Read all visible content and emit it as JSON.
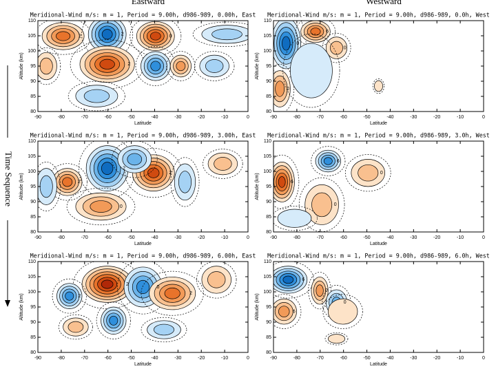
{
  "column_titles": [
    "Eastward",
    "Westward"
  ],
  "side_label": "Time Sequence",
  "chart_data": [
    {
      "type": "contour",
      "title": "Meridional-Wind m/s: m = 1, Period = 9.00h, d986-989, 0.00h, East",
      "x_label": "Latitude",
      "y_label": "Altitude (km)",
      "xlim": [
        -90,
        0
      ],
      "ylim": [
        80,
        110
      ],
      "xticks": [
        -90,
        -80,
        -70,
        -60,
        -50,
        -40,
        -30,
        -20,
        -10,
        0
      ],
      "yticks": [
        80,
        85,
        90,
        95,
        100,
        105,
        110
      ],
      "contour_labels": [
        "2",
        "2",
        "0",
        "2"
      ]
    },
    {
      "type": "contour",
      "title": "Meridional-Wind m/s: m = 1, Period = 9.00h, d986-989, 0.0h, West",
      "x_label": "Latitude",
      "y_label": "Altitude (km)",
      "xlim": [
        -90,
        0
      ],
      "ylim": [
        80,
        110
      ],
      "xticks": [
        -90,
        -80,
        -70,
        -60,
        -50,
        -40,
        -30,
        -20,
        -10,
        0
      ],
      "yticks": [
        80,
        85,
        90,
        95,
        100,
        105,
        110
      ],
      "contour_labels": [
        "0",
        "6",
        "0",
        "0"
      ]
    },
    {
      "type": "contour",
      "title": "Meridional-Wind m/s: m = 1, Period = 9.00h, d986-989, 3.00h, East",
      "x_label": "Latitude",
      "y_label": "Altitude (km)",
      "xlim": [
        -90,
        0
      ],
      "ylim": [
        80,
        110
      ],
      "xticks": [
        -90,
        -80,
        -70,
        -60,
        -50,
        -40,
        -30,
        -20,
        -10,
        0
      ],
      "yticks": [
        80,
        85,
        90,
        95,
        100,
        105,
        110
      ],
      "contour_labels": [
        "2",
        "2",
        "2",
        "0"
      ]
    },
    {
      "type": "contour",
      "title": "Meridional-Wind m/s: m = 1, Period = 9.00h, d986-989, 3.0h, West",
      "x_label": "Latitude",
      "y_label": "Altitude (km)",
      "xlim": [
        -90,
        0
      ],
      "ylim": [
        80,
        110
      ],
      "xticks": [
        -90,
        -80,
        -70,
        -60,
        -50,
        -40,
        -30,
        -20,
        -10,
        0
      ],
      "yticks": [
        80,
        85,
        90,
        95,
        100,
        105,
        110
      ],
      "contour_labels": [
        "6",
        "6",
        "0",
        "0"
      ]
    },
    {
      "type": "contour",
      "title": "Meridional-Wind m/s: m = 1, Period = 9.00h, d986-989, 6.00h, East",
      "x_label": "Latitude",
      "y_label": "Altitude (km)",
      "xlim": [
        -90,
        0
      ],
      "ylim": [
        80,
        110
      ],
      "xticks": [
        -90,
        -80,
        -70,
        -60,
        -50,
        -40,
        -30,
        -20,
        -10,
        0
      ],
      "yticks": [
        80,
        85,
        90,
        95,
        100,
        105,
        110
      ],
      "contour_labels": [
        "2",
        "2",
        "0",
        "2"
      ]
    },
    {
      "type": "contour",
      "title": "Meridional-Wind m/s: m = 1, Period = 9.00h, d986-989, 6.0h, West",
      "x_label": "Latitude",
      "y_label": "Altitude (km)",
      "xlim": [
        -90,
        0
      ],
      "ylim": [
        80,
        110
      ],
      "xticks": [
        -90,
        -80,
        -70,
        -60,
        -50,
        -40,
        -30,
        -20,
        -10,
        0
      ],
      "yticks": [
        80,
        85,
        90,
        95,
        100,
        105,
        110
      ],
      "contour_labels": [
        "6",
        "6",
        "0",
        "0"
      ]
    }
  ]
}
